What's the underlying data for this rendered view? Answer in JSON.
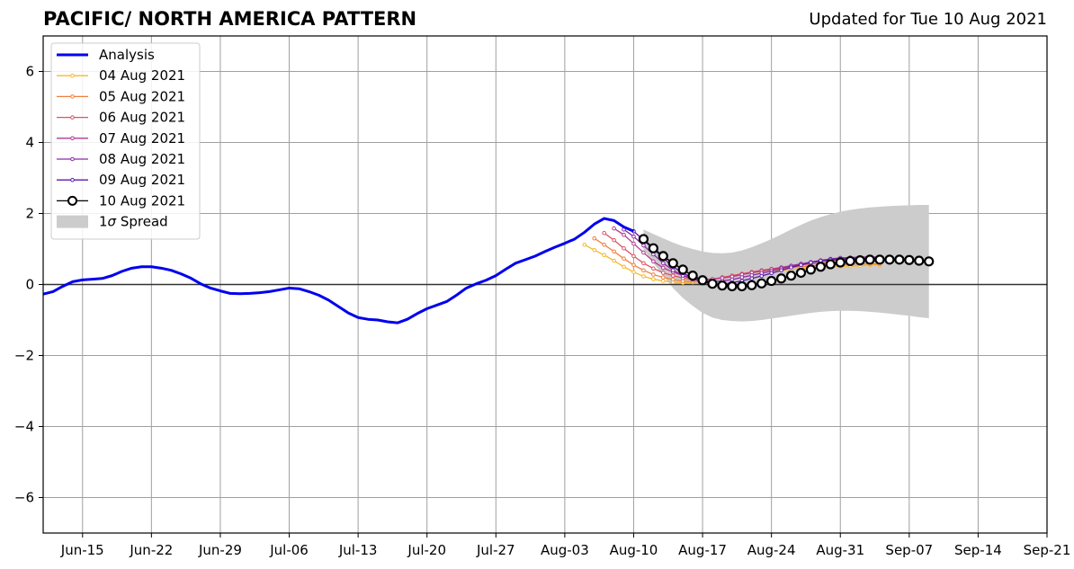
{
  "chart_data": {
    "type": "line",
    "title": "PACIFIC/ NORTH AMERICA PATTERN",
    "subtitle": "Updated for Tue 10 Aug 2021",
    "xlabel": "",
    "ylabel": "",
    "x_axis": {
      "range": [
        "2021-06-11",
        "2021-09-21"
      ],
      "ticks": [
        "2021-06-15",
        "2021-06-22",
        "2021-06-29",
        "2021-07-06",
        "2021-07-13",
        "2021-07-20",
        "2021-07-27",
        "2021-08-03",
        "2021-08-10",
        "2021-08-17",
        "2021-08-24",
        "2021-08-31",
        "2021-09-07",
        "2021-09-14",
        "2021-09-21"
      ],
      "tick_labels": [
        "Jun-15",
        "Jun-22",
        "Jun-29",
        "Jul-06",
        "Jul-13",
        "Jul-20",
        "Jul-27",
        "Aug-03",
        "Aug-10",
        "Aug-17",
        "Aug-24",
        "Aug-31",
        "Sep-07",
        "Sep-14",
        "Sep-21"
      ]
    },
    "y_axis": {
      "range": [
        -7,
        7
      ],
      "ticks": [
        -6,
        -4,
        -2,
        0,
        2,
        4,
        6
      ],
      "tick_labels": [
        "−6",
        "−4",
        "−2",
        "0",
        "2",
        "4",
        "6"
      ]
    },
    "grid": true,
    "legend_position": "top-left",
    "analysis": {
      "name": "Analysis",
      "color": "#0000ee",
      "x": [
        "2021-06-11",
        "2021-06-12",
        "2021-06-13",
        "2021-06-14",
        "2021-06-15",
        "2021-06-16",
        "2021-06-17",
        "2021-06-18",
        "2021-06-19",
        "2021-06-20",
        "2021-06-21",
        "2021-06-22",
        "2021-06-23",
        "2021-06-24",
        "2021-06-25",
        "2021-06-26",
        "2021-06-27",
        "2021-06-28",
        "2021-06-29",
        "2021-06-30",
        "2021-07-01",
        "2021-07-02",
        "2021-07-03",
        "2021-07-04",
        "2021-07-05",
        "2021-07-06",
        "2021-07-07",
        "2021-07-08",
        "2021-07-09",
        "2021-07-10",
        "2021-07-11",
        "2021-07-12",
        "2021-07-13",
        "2021-07-14",
        "2021-07-15",
        "2021-07-16",
        "2021-07-17",
        "2021-07-18",
        "2021-07-19",
        "2021-07-20",
        "2021-07-21",
        "2021-07-22",
        "2021-07-23",
        "2021-07-24",
        "2021-07-25",
        "2021-07-26",
        "2021-07-27",
        "2021-07-28",
        "2021-07-29",
        "2021-07-30",
        "2021-07-31",
        "2021-08-01",
        "2021-08-02",
        "2021-08-03",
        "2021-08-04",
        "2021-08-05",
        "2021-08-06",
        "2021-08-07",
        "2021-08-08",
        "2021-08-09",
        "2021-08-10"
      ],
      "y": [
        -0.27,
        -0.2,
        -0.05,
        0.08,
        0.13,
        0.15,
        0.17,
        0.25,
        0.37,
        0.46,
        0.5,
        0.5,
        0.46,
        0.4,
        0.3,
        0.18,
        0.02,
        -0.1,
        -0.18,
        -0.25,
        -0.26,
        -0.25,
        -0.23,
        -0.2,
        -0.15,
        -0.1,
        -0.12,
        -0.2,
        -0.3,
        -0.44,
        -0.62,
        -0.8,
        -0.93,
        -0.98,
        -1.0,
        -1.05,
        -1.08,
        -0.98,
        -0.82,
        -0.68,
        -0.58,
        -0.48,
        -0.3,
        -0.1,
        0.02,
        0.12,
        0.25,
        0.43,
        0.6,
        0.7,
        0.8,
        0.93,
        1.05,
        1.16,
        1.28,
        1.47,
        1.7,
        1.86,
        1.8,
        1.62,
        1.5
      ]
    },
    "series": [
      {
        "name": "04 Aug 2021",
        "color": "#f5b82e",
        "x_start": "2021-08-05",
        "values": [
          1.12,
          0.97,
          0.83,
          0.67,
          0.5,
          0.35,
          0.23,
          0.15,
          0.1,
          0.07,
          0.05,
          0.06,
          0.1,
          0.15,
          0.2,
          0.25,
          0.3,
          0.33,
          0.36,
          0.38,
          0.4,
          0.42,
          0.45,
          0.47,
          0.48,
          0.5,
          0.51,
          0.52,
          0.53,
          0.55,
          0.55
        ]
      },
      {
        "name": "05 Aug 2021",
        "color": "#ef7f3b",
        "x_start": "2021-08-06",
        "values": [
          1.3,
          1.12,
          0.93,
          0.73,
          0.55,
          0.4,
          0.28,
          0.2,
          0.14,
          0.1,
          0.08,
          0.1,
          0.14,
          0.2,
          0.25,
          0.3,
          0.35,
          0.38,
          0.42,
          0.45,
          0.48,
          0.5,
          0.52,
          0.54,
          0.55,
          0.56,
          0.57,
          0.58,
          0.58,
          0.58
        ]
      },
      {
        "name": "06 Aug 2021",
        "color": "#d95466",
        "x_start": "2021-08-07",
        "values": [
          1.45,
          1.25,
          1.02,
          0.8,
          0.6,
          0.45,
          0.33,
          0.25,
          0.18,
          0.13,
          0.12,
          0.15,
          0.2,
          0.25,
          0.3,
          0.35,
          0.4,
          0.44,
          0.48,
          0.52,
          0.55,
          0.58,
          0.6,
          0.62,
          0.63,
          0.64,
          0.65,
          0.66,
          0.67
        ]
      },
      {
        "name": "07 Aug 2021",
        "color": "#b13b8f",
        "x_start": "2021-08-08",
        "values": [
          1.58,
          1.4,
          1.15,
          0.9,
          0.65,
          0.47,
          0.35,
          0.25,
          0.18,
          0.15,
          0.15,
          0.18,
          0.22,
          0.28,
          0.33,
          0.38,
          0.43,
          0.48,
          0.53,
          0.58,
          0.62,
          0.65,
          0.68,
          0.7,
          0.72,
          0.73,
          0.74,
          0.75
        ]
      },
      {
        "name": "08 Aug 2021",
        "color": "#8b2aa6",
        "x_start": "2021-08-09",
        "values": [
          1.55,
          1.35,
          1.1,
          0.85,
          0.6,
          0.4,
          0.25,
          0.15,
          0.1,
          0.08,
          0.1,
          0.14,
          0.2,
          0.26,
          0.32,
          0.38,
          0.45,
          0.52,
          0.58,
          0.63,
          0.68,
          0.72,
          0.75,
          0.76,
          0.77,
          0.77,
          0.77
        ]
      },
      {
        "name": "09 Aug 2021",
        "color": "#5b1aa8",
        "x_start": "2021-08-10",
        "values": [
          1.5,
          1.25,
          1.0,
          0.75,
          0.5,
          0.32,
          0.18,
          0.07,
          0.02,
          0.0,
          0.05,
          0.1,
          0.17,
          0.24,
          0.32,
          0.4,
          0.48,
          0.55,
          0.62,
          0.67,
          0.7,
          0.72,
          0.73,
          0.73,
          0.73,
          0.72
        ]
      },
      {
        "name": "10 Aug 2021",
        "color": "#000000",
        "x_start": "2021-08-11",
        "values": [
          1.28,
          1.02,
          0.8,
          0.6,
          0.42,
          0.25,
          0.12,
          0.02,
          -0.03,
          -0.05,
          -0.05,
          -0.02,
          0.03,
          0.1,
          0.17,
          0.25,
          0.33,
          0.42,
          0.5,
          0.57,
          0.62,
          0.66,
          0.68,
          0.7,
          0.7,
          0.7,
          0.7,
          0.69,
          0.67,
          0.65
        ]
      }
    ],
    "spread": {
      "name": "1σ Spread",
      "color": "#cccccc",
      "x_start": "2021-08-11",
      "upper": [
        1.55,
        1.42,
        1.3,
        1.18,
        1.08,
        1.0,
        0.93,
        0.89,
        0.88,
        0.9,
        0.96,
        1.05,
        1.16,
        1.28,
        1.41,
        1.55,
        1.68,
        1.8,
        1.9,
        1.98,
        2.05,
        2.1,
        2.14,
        2.17,
        2.19,
        2.21,
        2.22,
        2.23,
        2.24,
        2.24
      ],
      "lower": [
        1.0,
        0.6,
        0.25,
        -0.1,
        -0.38,
        -0.6,
        -0.8,
        -0.93,
        -1.0,
        -1.03,
        -1.04,
        -1.03,
        -1.0,
        -0.96,
        -0.92,
        -0.88,
        -0.84,
        -0.8,
        -0.77,
        -0.75,
        -0.74,
        -0.74,
        -0.75,
        -0.77,
        -0.79,
        -0.82,
        -0.85,
        -0.88,
        -0.92,
        -0.95
      ]
    },
    "legend_spread_label_prefix": "1",
    "legend_spread_label_sigma": "σ",
    "legend_spread_label_suffix": " Spread"
  }
}
